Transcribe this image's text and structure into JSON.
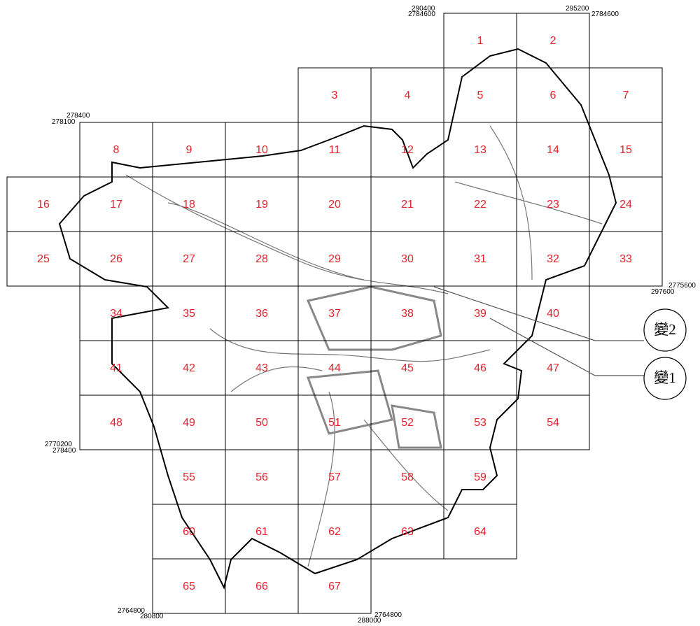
{
  "cells": [
    [
      "1",
      "2"
    ],
    [
      "3",
      "4",
      "5",
      "6",
      "7"
    ],
    [
      "8",
      "9",
      "10",
      "11",
      "12",
      "13",
      "14",
      "15"
    ],
    [
      "16",
      "17",
      "18",
      "19",
      "20",
      "21",
      "22",
      "23",
      "24"
    ],
    [
      "25",
      "26",
      "27",
      "28",
      "29",
      "30",
      "31",
      "32",
      "33"
    ],
    [
      "34",
      "35",
      "36",
      "37",
      "38",
      "39",
      "40"
    ],
    [
      "41",
      "42",
      "43",
      "44",
      "45",
      "46",
      "47"
    ],
    [
      "48",
      "49",
      "50",
      "51",
      "52",
      "53",
      "54"
    ],
    [
      "55",
      "56",
      "57",
      "58",
      "59"
    ],
    [
      "60",
      "61",
      "62",
      "63",
      "64"
    ],
    [
      "65",
      "66",
      "67"
    ]
  ],
  "coordinates": [
    "290400",
    "2784600",
    "295200",
    "2784600",
    "278400",
    "278100",
    "2775600",
    "297600",
    "2770200",
    "278400",
    "2764800",
    "280800",
    "2764800",
    "288000"
  ],
  "callouts": [
    "變2",
    "變1"
  ]
}
